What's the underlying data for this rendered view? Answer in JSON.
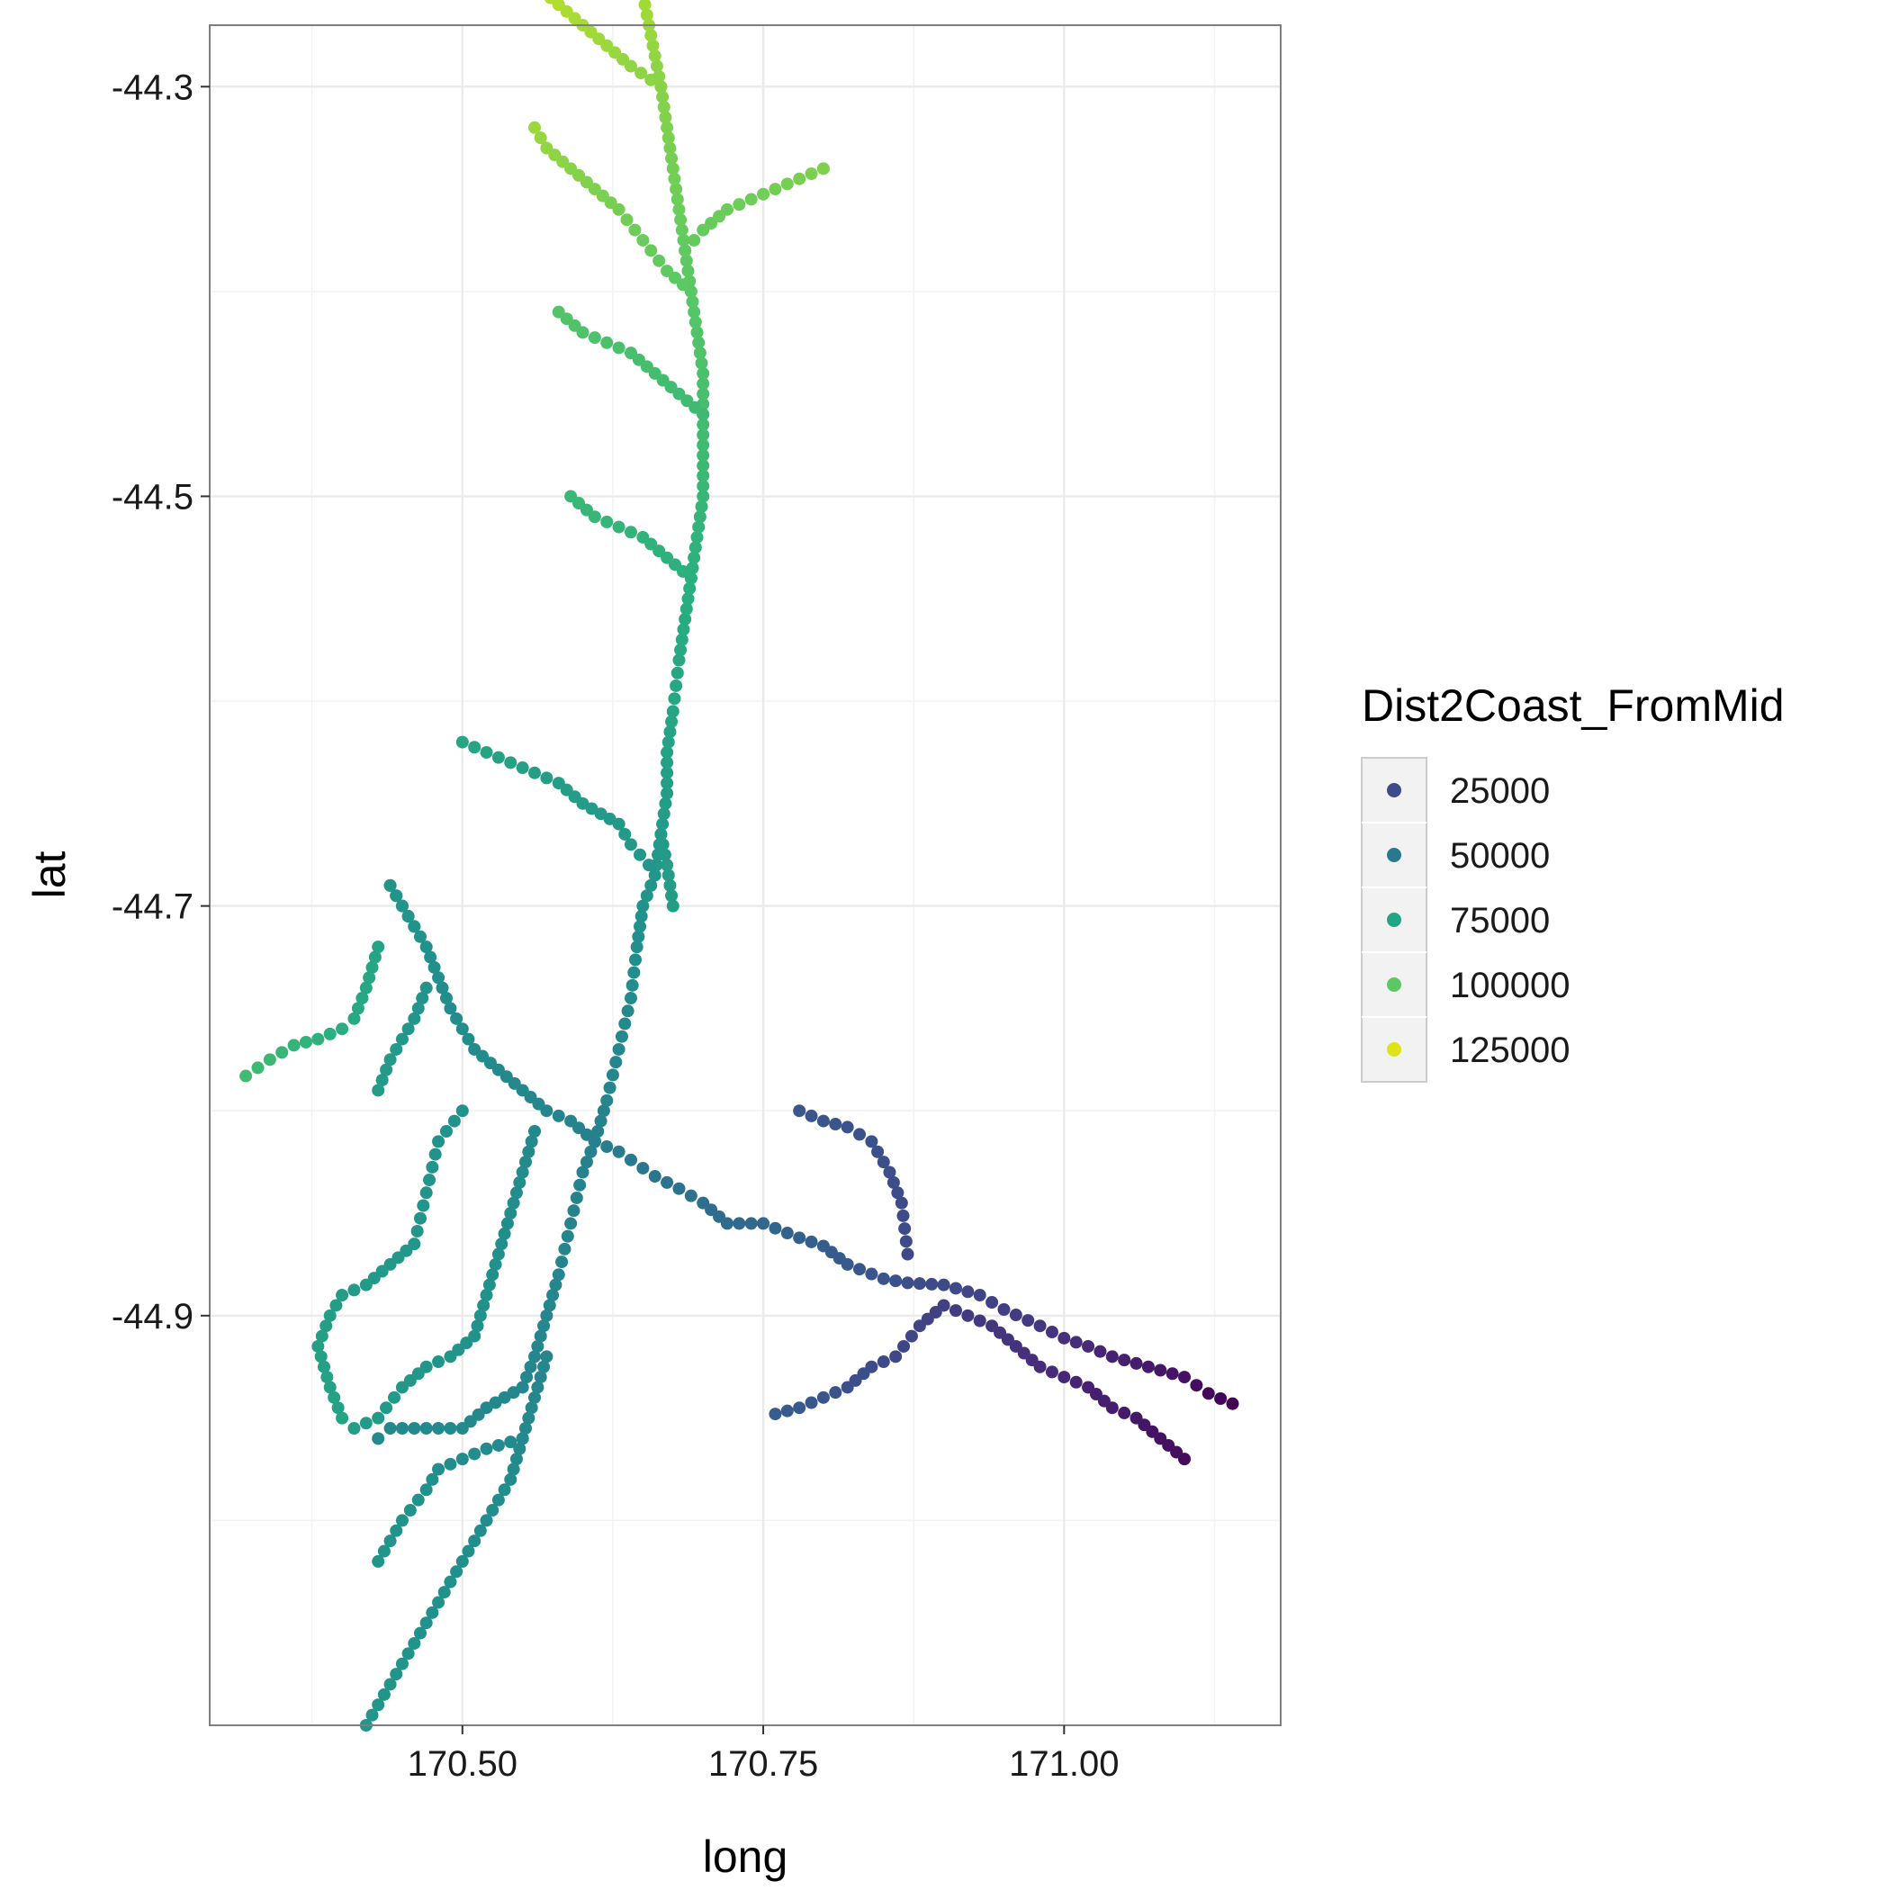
{
  "chart_data": {
    "type": "scatter",
    "title": "",
    "xlabel": "long",
    "ylabel": "lat",
    "xlim": [
      170.29,
      171.18
    ],
    "ylim": [
      -45.1,
      -44.27
    ],
    "x_ticks": [
      170.5,
      170.75,
      171.0
    ],
    "x_tick_labels": [
      "170.50",
      "170.75",
      "171.00"
    ],
    "y_ticks": [
      -44.3,
      -44.5,
      -44.7,
      -44.9
    ],
    "y_tick_labels": [
      "-44.3",
      "-44.5",
      "-44.7",
      "-44.9"
    ],
    "grid": true,
    "legend_position": "right",
    "color_variable": "Dist2Coast_FromMid",
    "color_scale": {
      "name": "Dist2Coast_FromMid",
      "type": "viridis",
      "domain": [
        5000,
        135000
      ],
      "stops": [
        "#440154",
        "#472d7b",
        "#3b528b",
        "#2c728e",
        "#21918c",
        "#28ae80",
        "#5ec962",
        "#addc30",
        "#fde725"
      ],
      "legend_values": [
        25000,
        50000,
        75000,
        100000,
        125000
      ],
      "legend_labels": [
        "25000",
        "50000",
        "75000",
        "100000",
        "125000"
      ],
      "legend_colors": [
        "#3e4a89",
        "#2a788e",
        "#21a585",
        "#5dc863",
        "#dde318"
      ]
    },
    "branches": [
      {
        "points": [
          [
            171.14,
            -44.943
          ],
          [
            171.12,
            -44.938
          ],
          [
            171.1,
            -44.93
          ],
          [
            171.07,
            -44.925
          ],
          [
            171.04,
            -44.92
          ],
          [
            171.02,
            -44.915
          ],
          [
            171.0,
            -44.911
          ],
          [
            170.98,
            -44.905
          ],
          [
            170.95,
            -44.897
          ],
          [
            170.93,
            -44.89
          ],
          [
            170.9,
            -44.885
          ],
          [
            170.87,
            -44.884
          ],
          [
            170.85,
            -44.882
          ],
          [
            170.82,
            -44.875
          ],
          [
            170.8,
            -44.866
          ],
          [
            170.78,
            -44.862
          ],
          [
            170.75,
            -44.855
          ],
          [
            170.72,
            -44.855
          ],
          [
            170.7,
            -44.845
          ],
          [
            170.68,
            -44.838
          ],
          [
            170.66,
            -44.832
          ],
          [
            170.65,
            -44.828
          ],
          [
            170.63,
            -44.82
          ],
          [
            170.61,
            -44.815
          ]
        ],
        "values": [
          5000,
          8000,
          11000,
          14000,
          17000,
          20000,
          23000,
          26000,
          29000,
          32000,
          34000,
          36000,
          38000,
          41000,
          43000,
          45000,
          48000,
          50000,
          52000,
          54000,
          56000,
          57000,
          59000,
          61000
        ]
      },
      {
        "points": [
          [
            170.78,
            -44.8
          ],
          [
            170.8,
            -44.805
          ],
          [
            170.82,
            -44.808
          ],
          [
            170.84,
            -44.815
          ],
          [
            170.855,
            -44.83
          ],
          [
            170.865,
            -44.845
          ],
          [
            170.87,
            -44.87
          ]
        ],
        "values": [
          40000,
          39000,
          38000,
          37000,
          36000,
          35000,
          34000
        ]
      },
      {
        "points": [
          [
            171.1,
            -44.97
          ],
          [
            171.08,
            -44.96
          ],
          [
            171.06,
            -44.95
          ],
          [
            171.04,
            -44.945
          ],
          [
            171.02,
            -44.935
          ],
          [
            171.0,
            -44.93
          ],
          [
            170.98,
            -44.925
          ],
          [
            170.96,
            -44.915
          ],
          [
            170.94,
            -44.905
          ],
          [
            170.92,
            -44.9
          ],
          [
            170.9,
            -44.895
          ],
          [
            170.88,
            -44.905
          ],
          [
            170.86,
            -44.92
          ],
          [
            170.84,
            -44.925
          ],
          [
            170.82,
            -44.935
          ],
          [
            170.8,
            -44.94
          ],
          [
            170.78,
            -44.945
          ],
          [
            170.76,
            -44.948
          ]
        ],
        "values": [
          9000,
          11000,
          13000,
          15000,
          17000,
          19000,
          21000,
          23000,
          25000,
          27000,
          29000,
          31000,
          33000,
          35000,
          37000,
          39000,
          41000,
          43000
        ]
      },
      {
        "points": [
          [
            170.61,
            -44.815
          ],
          [
            170.6,
            -44.83
          ],
          [
            170.59,
            -44.855
          ],
          [
            170.58,
            -44.88
          ],
          [
            170.57,
            -44.9
          ],
          [
            170.56,
            -44.92
          ],
          [
            170.55,
            -44.935
          ],
          [
            170.52,
            -44.945
          ],
          [
            170.5,
            -44.955
          ],
          [
            170.47,
            -44.955
          ],
          [
            170.44,
            -44.955
          ],
          [
            170.43,
            -44.96
          ]
        ],
        "values": [
          61000,
          62000,
          63000,
          64000,
          64000,
          65000,
          65000,
          65000,
          66000,
          66000,
          66000,
          66000
        ]
      },
      {
        "points": [
          [
            170.57,
            -44.92
          ],
          [
            170.56,
            -44.94
          ],
          [
            170.55,
            -44.96
          ],
          [
            170.54,
            -44.98
          ],
          [
            170.52,
            -45.0
          ],
          [
            170.5,
            -45.02
          ],
          [
            170.48,
            -45.04
          ],
          [
            170.46,
            -45.06
          ],
          [
            170.44,
            -45.08
          ],
          [
            170.42,
            -45.1
          ]
        ],
        "values": [
          64000,
          65000,
          66000,
          67000,
          68000,
          69000,
          70000,
          71000,
          72000,
          73000
        ]
      },
      {
        "points": [
          [
            170.55,
            -44.96
          ],
          [
            170.52,
            -44.965
          ],
          [
            170.5,
            -44.97
          ],
          [
            170.48,
            -44.975
          ],
          [
            170.47,
            -44.985
          ],
          [
            170.45,
            -45.0
          ],
          [
            170.43,
            -45.02
          ]
        ],
        "values": [
          66000,
          67000,
          68000,
          69000,
          70000,
          71000,
          72000
        ]
      },
      {
        "points": [
          [
            170.61,
            -44.815
          ],
          [
            170.59,
            -44.805
          ],
          [
            170.57,
            -44.8
          ],
          [
            170.55,
            -44.79
          ],
          [
            170.53,
            -44.78
          ],
          [
            170.51,
            -44.77
          ],
          [
            170.49,
            -44.75
          ],
          [
            170.48,
            -44.735
          ],
          [
            170.47,
            -44.72
          ],
          [
            170.46,
            -44.71
          ],
          [
            170.45,
            -44.7
          ],
          [
            170.44,
            -44.69
          ]
        ],
        "values": [
          61000,
          63000,
          64000,
          65000,
          66000,
          67000,
          68000,
          69000,
          70000,
          71000,
          71000,
          72000
        ]
      },
      {
        "points": [
          [
            170.56,
            -44.81
          ],
          [
            170.55,
            -44.83
          ],
          [
            170.54,
            -44.85
          ],
          [
            170.53,
            -44.87
          ],
          [
            170.52,
            -44.89
          ],
          [
            170.51,
            -44.91
          ],
          [
            170.49,
            -44.92
          ],
          [
            170.47,
            -44.925
          ],
          [
            170.45,
            -44.935
          ],
          [
            170.43,
            -44.95
          ],
          [
            170.41,
            -44.955
          ]
        ],
        "values": [
          66000,
          67000,
          68000,
          69000,
          70000,
          71000,
          72000,
          73000,
          74000,
          75000,
          76000
        ]
      },
      {
        "points": [
          [
            170.5,
            -44.8
          ],
          [
            170.48,
            -44.815
          ],
          [
            170.47,
            -44.84
          ],
          [
            170.46,
            -44.865
          ],
          [
            170.44,
            -44.875
          ],
          [
            170.42,
            -44.885
          ],
          [
            170.4,
            -44.89
          ],
          [
            170.39,
            -44.9
          ],
          [
            170.38,
            -44.915
          ],
          [
            170.39,
            -44.935
          ],
          [
            170.4,
            -44.95
          ]
        ],
        "values": [
          70000,
          71000,
          72000,
          73000,
          74000,
          75000,
          76000,
          77000,
          78000,
          79000,
          80000
        ]
      },
      {
        "points": [
          [
            170.47,
            -44.74
          ],
          [
            170.46,
            -44.755
          ],
          [
            170.45,
            -44.765
          ],
          [
            170.44,
            -44.775
          ],
          [
            170.43,
            -44.79
          ]
        ],
        "values": [
          72000,
          73000,
          74000,
          75000,
          76000
        ]
      },
      {
        "points": [
          [
            170.43,
            -44.72
          ],
          [
            170.42,
            -44.74
          ],
          [
            170.41,
            -44.755
          ],
          [
            170.4,
            -44.76
          ],
          [
            170.38,
            -44.765
          ],
          [
            170.36,
            -44.768
          ],
          [
            170.34,
            -44.775
          ],
          [
            170.32,
            -44.783
          ]
        ],
        "values": [
          80000,
          82000,
          84000,
          86000,
          88000,
          90000,
          92000,
          94000
        ]
      },
      {
        "points": [
          [
            170.44,
            -44.69
          ],
          [
            170.45,
            -44.7
          ],
          [
            170.46,
            -44.71
          ]
        ],
        "values": [
          72000,
          72000,
          71000
        ]
      },
      {
        "points": [
          [
            170.61,
            -44.815
          ],
          [
            170.62,
            -44.795
          ],
          [
            170.63,
            -44.77
          ],
          [
            170.64,
            -44.745
          ],
          [
            170.645,
            -44.72
          ],
          [
            170.65,
            -44.7
          ],
          [
            170.66,
            -44.685
          ],
          [
            170.665,
            -44.665
          ],
          [
            170.67,
            -44.645
          ],
          [
            170.67,
            -44.625
          ],
          [
            170.675,
            -44.605
          ],
          [
            170.68,
            -44.58
          ],
          [
            170.685,
            -44.56
          ],
          [
            170.69,
            -44.54
          ],
          [
            170.695,
            -44.52
          ],
          [
            170.7,
            -44.5
          ],
          [
            170.7,
            -44.48
          ],
          [
            170.7,
            -44.46
          ],
          [
            170.7,
            -44.44
          ],
          [
            170.695,
            -44.42
          ],
          [
            170.69,
            -44.4
          ],
          [
            170.685,
            -44.38
          ],
          [
            170.68,
            -44.36
          ],
          [
            170.675,
            -44.34
          ],
          [
            170.67,
            -44.32
          ],
          [
            170.665,
            -44.3
          ],
          [
            170.66,
            -44.285
          ],
          [
            170.655,
            -44.27
          ],
          [
            170.65,
            -44.255
          ]
        ],
        "values": [
          61000,
          63000,
          65000,
          67000,
          69000,
          71000,
          73000,
          75000,
          77000,
          79000,
          81000,
          83000,
          85000,
          87000,
          89000,
          91000,
          93000,
          95000,
          97000,
          99000,
          101000,
          103000,
          105000,
          107000,
          109000,
          111000,
          113000,
          115000,
          117000
        ]
      },
      {
        "points": [
          [
            170.69,
            -44.54
          ],
          [
            170.67,
            -44.53
          ],
          [
            170.65,
            -44.52
          ],
          [
            170.63,
            -44.515
          ],
          [
            170.61,
            -44.51
          ],
          [
            170.59,
            -44.5
          ]
        ],
        "values": [
          87000,
          88000,
          89000,
          90000,
          91000,
          92000
        ]
      },
      {
        "points": [
          [
            170.655,
            -44.68
          ],
          [
            170.64,
            -44.67
          ],
          [
            170.63,
            -44.66
          ],
          [
            170.6,
            -44.65
          ],
          [
            170.58,
            -44.64
          ],
          [
            170.56,
            -44.635
          ],
          [
            170.54,
            -44.63
          ],
          [
            170.52,
            -44.625
          ],
          [
            170.5,
            -44.62
          ]
        ],
        "values": [
          73000,
          74000,
          75000,
          76000,
          77000,
          78000,
          79000,
          80000,
          81000
        ]
      },
      {
        "points": [
          [
            170.665,
            -44.665
          ],
          [
            170.67,
            -44.68
          ],
          [
            170.675,
            -44.7
          ]
        ],
        "values": [
          75000,
          76000,
          77000
        ]
      },
      {
        "points": [
          [
            170.7,
            -44.46
          ],
          [
            170.68,
            -44.45
          ],
          [
            170.66,
            -44.44
          ],
          [
            170.64,
            -44.43
          ],
          [
            170.62,
            -44.425
          ],
          [
            170.6,
            -44.42
          ],
          [
            170.58,
            -44.41
          ]
        ],
        "values": [
          93000,
          94000,
          95000,
          96000,
          97000,
          98000,
          99000
        ]
      },
      {
        "points": [
          [
            170.69,
            -44.4
          ],
          [
            170.67,
            -44.39
          ],
          [
            170.65,
            -44.375
          ],
          [
            170.63,
            -44.36
          ],
          [
            170.61,
            -44.35
          ],
          [
            170.59,
            -44.34
          ],
          [
            170.57,
            -44.33
          ],
          [
            170.56,
            -44.32
          ]
        ],
        "values": [
          101000,
          103000,
          105000,
          107000,
          109000,
          111000,
          113000,
          115000
        ]
      },
      {
        "points": [
          [
            170.685,
            -44.38
          ],
          [
            170.7,
            -44.37
          ],
          [
            170.72,
            -44.36
          ],
          [
            170.74,
            -44.355
          ],
          [
            170.76,
            -44.35
          ],
          [
            170.78,
            -44.345
          ],
          [
            170.8,
            -44.34
          ]
        ],
        "values": [
          103000,
          104000,
          105000,
          106000,
          107000,
          108000,
          109000
        ]
      },
      {
        "points": [
          [
            170.665,
            -44.3
          ],
          [
            170.64,
            -44.29
          ],
          [
            170.62,
            -44.28
          ],
          [
            170.6,
            -44.27
          ],
          [
            170.58,
            -44.26
          ],
          [
            170.56,
            -44.25
          ],
          [
            170.55,
            -44.24
          ]
        ],
        "values": [
          111000,
          113000,
          115000,
          117000,
          119000,
          121000,
          123000
        ]
      }
    ]
  }
}
